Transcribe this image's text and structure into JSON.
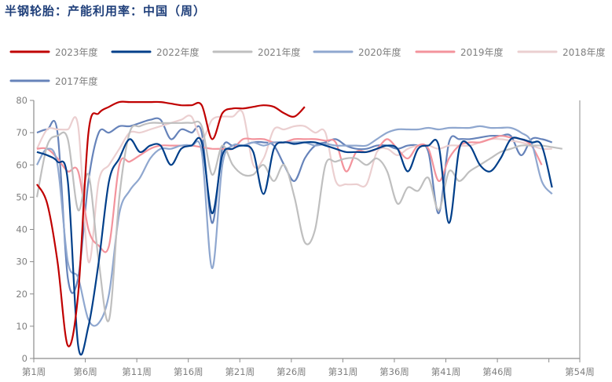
{
  "chart_data": {
    "type": "line",
    "title": "半钢轮胎：产能利用率：中国（周）",
    "xlabel": "",
    "ylabel": "",
    "ylim": [
      0,
      80
    ],
    "yticks": [
      0,
      10,
      20,
      30,
      40,
      50,
      60,
      70,
      80
    ],
    "xlim": [
      1,
      54
    ],
    "xticks": [
      1,
      6,
      11,
      16,
      21,
      26,
      31,
      36,
      41,
      46,
      51,
      54
    ],
    "xtick_labels": [
      "第1周",
      "第6周",
      "第11周",
      "第16周",
      "第21周",
      "第26周",
      "第31周",
      "第36周",
      "第41周",
      "第46周",
      "",
      "第54周"
    ],
    "grid": false,
    "legend_position": "top",
    "x_unit": "week",
    "series": [
      {
        "name": "2023年度",
        "color": "#c00000",
        "values": [
          54,
          48,
          30,
          4,
          20,
          70,
          76,
          78,
          79.5,
          79.5,
          79.5,
          79.5,
          79.5,
          79,
          78.5,
          78.5,
          78.5,
          68,
          76,
          77.5,
          77.5,
          78,
          78.5,
          78,
          76,
          75,
          78
        ]
      },
      {
        "name": "2022年度",
        "color": "#003f8a",
        "values": [
          64,
          63,
          61,
          55,
          4,
          10,
          30,
          55,
          62,
          68,
          64,
          66,
          66,
          60,
          65,
          66,
          67,
          45,
          63,
          65,
          66,
          64,
          51,
          65,
          67,
          66.5,
          67,
          67,
          66,
          65,
          64,
          64,
          64,
          65,
          66,
          65,
          58,
          65,
          66,
          66,
          42,
          65,
          66,
          60,
          58,
          62,
          68,
          68,
          67,
          66,
          53
        ]
      },
      {
        "name": "2021年度",
        "color": "#bfbfbf",
        "values": [
          50,
          66,
          69,
          68,
          46,
          57,
          30,
          12,
          50,
          70,
          72,
          73,
          73,
          73,
          73,
          73,
          72,
          57,
          66,
          60,
          57,
          57,
          60,
          55,
          60,
          50,
          36,
          40,
          60,
          61,
          62,
          62,
          60,
          62,
          58,
          48,
          53,
          52,
          56,
          46,
          58,
          55,
          58,
          60,
          62,
          64,
          65,
          66,
          66,
          66,
          65.5,
          65
        ]
      },
      {
        "name": "2020年度",
        "color": "#8fa7cf",
        "values": [
          60,
          65,
          60,
          30,
          25,
          12,
          11,
          20,
          45,
          52,
          56,
          62,
          65,
          65,
          66,
          66,
          64,
          28,
          60,
          66,
          66,
          67,
          66,
          67,
          67,
          67,
          67,
          66,
          66.5,
          66,
          66,
          66,
          66,
          68,
          70,
          71,
          71,
          71,
          71.5,
          71,
          71.5,
          71.5,
          71.5,
          72,
          71.5,
          71.5,
          71.5,
          70,
          67,
          55,
          51
        ]
      },
      {
        "name": "2019年度",
        "color": "#f3939c",
        "values": [
          65,
          65,
          62,
          58,
          58,
          40,
          35,
          35,
          60,
          61,
          63,
          65,
          66,
          66,
          66,
          66,
          65.5,
          65,
          65,
          65,
          68,
          68,
          68,
          67,
          67,
          68,
          68,
          68,
          67.5,
          67,
          58,
          64,
          64,
          65,
          68,
          65,
          62,
          66,
          65,
          55,
          62,
          66,
          67,
          67,
          68,
          69,
          68.5,
          68,
          66,
          60
        ]
      },
      {
        "name": "2018年度",
        "color": "#ebcfd0",
        "values": [
          65,
          71,
          71,
          71,
          72,
          30,
          55,
          60,
          65,
          70,
          70,
          71,
          72,
          73,
          74,
          75,
          68,
          74,
          75,
          75,
          76,
          60,
          62,
          71,
          71,
          72,
          72,
          70,
          70,
          55,
          54,
          54,
          54,
          64,
          65,
          63,
          65,
          66,
          66,
          65,
          66,
          66,
          66,
          67,
          68,
          68,
          67.5,
          67,
          66,
          65,
          65
        ]
      },
      {
        "name": "2017年度",
        "color": "#6683ba",
        "values": [
          70,
          71,
          70,
          25,
          25,
          55,
          70,
          70,
          72,
          72,
          73,
          74,
          74,
          68,
          71,
          70,
          70,
          42,
          65,
          66,
          66,
          67,
          67,
          66,
          60,
          55,
          62,
          66,
          67,
          68,
          66,
          65,
          65,
          66,
          66,
          65,
          66,
          66,
          64,
          45,
          67,
          68,
          68,
          68.5,
          69,
          69,
          69,
          63,
          68,
          68,
          67
        ]
      }
    ]
  }
}
